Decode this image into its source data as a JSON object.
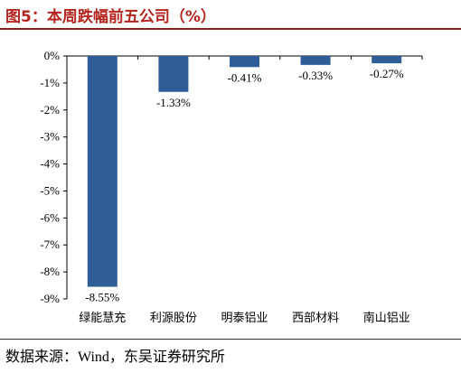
{
  "title": "图5：本周跌幅前五公司（%）",
  "source": "数据来源：Wind，东吴证券研究所",
  "chart_data": {
    "type": "bar",
    "categories": [
      "绿能慧充",
      "利源股份",
      "明泰铝业",
      "西部材料",
      "南山铝业"
    ],
    "values": [
      -8.55,
      -1.33,
      -0.41,
      -0.33,
      -0.27
    ],
    "data_labels": [
      "-8.55%",
      "-1.33%",
      "-0.41%",
      "-0.33%",
      "-0.27%"
    ],
    "ylim": [
      -9,
      0
    ],
    "yticks": [
      "0%",
      "-1%",
      "-2%",
      "-3%",
      "-4%",
      "-5%",
      "-6%",
      "-7%",
      "-8%",
      "-9%"
    ],
    "grid": false,
    "legend": "none",
    "bar_color": "#2e5d98",
    "title_color": "#b5251f"
  }
}
